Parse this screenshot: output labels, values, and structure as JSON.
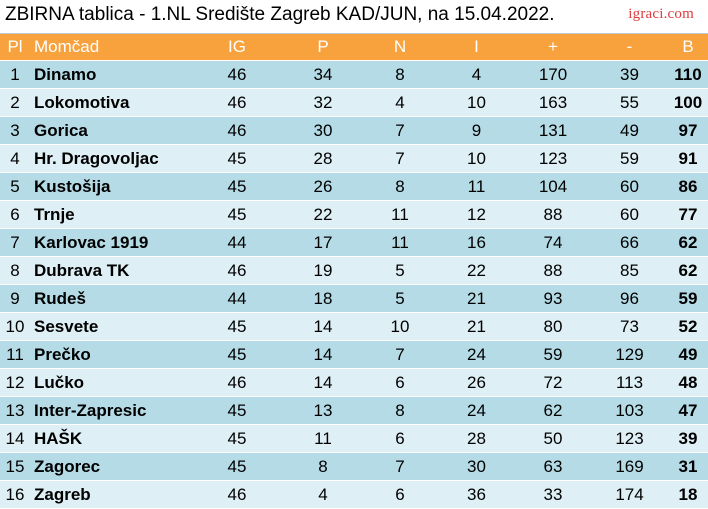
{
  "header": {
    "title": "ZBIRNA tablica - 1.NL Središte Zagreb KAD/JUN, na 15.04.2022.",
    "brand": "igraci.com"
  },
  "table": {
    "columns": [
      "Pl",
      "Momčad",
      "IG",
      "P",
      "N",
      "I",
      "+",
      "-",
      "B"
    ],
    "rows": [
      {
        "pl": "1",
        "team": "Dinamo",
        "ig": "46",
        "p": "34",
        "n": "8",
        "i": "4",
        "plus": "170",
        "minus": "39",
        "b": "110"
      },
      {
        "pl": "2",
        "team": "Lokomotiva",
        "ig": "46",
        "p": "32",
        "n": "4",
        "i": "10",
        "plus": "163",
        "minus": "55",
        "b": "100"
      },
      {
        "pl": "3",
        "team": "Gorica",
        "ig": "46",
        "p": "30",
        "n": "7",
        "i": "9",
        "plus": "131",
        "minus": "49",
        "b": "97"
      },
      {
        "pl": "4",
        "team": "Hr. Dragovoljac",
        "ig": "45",
        "p": "28",
        "n": "7",
        "i": "10",
        "plus": "123",
        "minus": "59",
        "b": "91"
      },
      {
        "pl": "5",
        "team": "Kustošija",
        "ig": "45",
        "p": "26",
        "n": "8",
        "i": "11",
        "plus": "104",
        "minus": "60",
        "b": "86"
      },
      {
        "pl": "6",
        "team": "Trnje",
        "ig": "45",
        "p": "22",
        "n": "11",
        "i": "12",
        "plus": "88",
        "minus": "60",
        "b": "77"
      },
      {
        "pl": "7",
        "team": "Karlovac 1919",
        "ig": "44",
        "p": "17",
        "n": "11",
        "i": "16",
        "plus": "74",
        "minus": "66",
        "b": "62"
      },
      {
        "pl": "8",
        "team": "Dubrava TK",
        "ig": "46",
        "p": "19",
        "n": "5",
        "i": "22",
        "plus": "88",
        "minus": "85",
        "b": "62"
      },
      {
        "pl": "9",
        "team": "Rudeš",
        "ig": "44",
        "p": "18",
        "n": "5",
        "i": "21",
        "plus": "93",
        "minus": "96",
        "b": "59"
      },
      {
        "pl": "10",
        "team": "Sesvete",
        "ig": "45",
        "p": "14",
        "n": "10",
        "i": "21",
        "plus": "80",
        "minus": "73",
        "b": "52"
      },
      {
        "pl": "11",
        "team": "Prečko",
        "ig": "45",
        "p": "14",
        "n": "7",
        "i": "24",
        "plus": "59",
        "minus": "129",
        "b": "49"
      },
      {
        "pl": "12",
        "team": "Lučko",
        "ig": "46",
        "p": "14",
        "n": "6",
        "i": "26",
        "plus": "72",
        "minus": "113",
        "b": "48"
      },
      {
        "pl": "13",
        "team": "Inter-Zapresic",
        "ig": "45",
        "p": "13",
        "n": "8",
        "i": "24",
        "plus": "62",
        "minus": "103",
        "b": "47"
      },
      {
        "pl": "14",
        "team": "HAŠK",
        "ig": "45",
        "p": "11",
        "n": "6",
        "i": "28",
        "plus": "50",
        "minus": "123",
        "b": "39"
      },
      {
        "pl": "15",
        "team": "Zagorec",
        "ig": "45",
        "p": "8",
        "n": "7",
        "i": "30",
        "plus": "63",
        "minus": "169",
        "b": "31"
      },
      {
        "pl": "16",
        "team": "Zagreb",
        "ig": "46",
        "p": "4",
        "n": "6",
        "i": "36",
        "plus": "33",
        "minus": "174",
        "b": "18"
      }
    ]
  },
  "colors": {
    "header_bg": "#f7a23c",
    "row_odd": "#b4dbe6",
    "row_even": "#deeff5",
    "brand": "#e03a3e"
  }
}
